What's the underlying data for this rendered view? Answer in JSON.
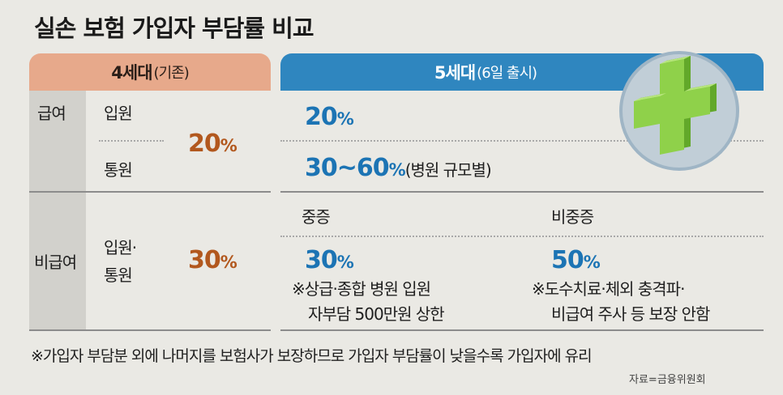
{
  "title": "실손 보험 가입자 부담률 비교",
  "header": {
    "gen4_main": "4세대",
    "gen4_sub": "(기존)",
    "gen5_main": "5세대",
    "gen5_sub": "(6일 출시)"
  },
  "rows": {
    "benefit": {
      "category": "급여",
      "inpatient": "입원",
      "outpatient": "통원",
      "gen4_value": "20",
      "gen5_inpatient_value": "20",
      "gen5_outpatient_value": "30~60",
      "gen5_outpatient_note": "(병원 규모별)"
    },
    "non_benefit": {
      "category": "비급여",
      "type_line1": "입원·",
      "type_line2": "통원",
      "gen4_value": "30",
      "severe_label": "중증",
      "nonsevere_label": "비중증",
      "severe_value": "30",
      "nonsevere_value": "50",
      "severe_note_line1": "※상급·종합 병원 입원",
      "severe_note_line2": "자부담 500만원 상한",
      "nonsevere_note_line1": "※도수치료·체외 충격파·",
      "nonsevere_note_line2": "비급여 주사 등 보장 안함"
    }
  },
  "percent_unit": "%",
  "footnote": "※가입자 부담분 외에 나머지를 보험사가 보장하므로 가입자 부담률이 낮을수록 가입자에 유리",
  "source": "자료=금융위원회",
  "colors": {
    "gen4_header": "#e7a98b",
    "gen5_header": "#2f86bf",
    "gen4_value": "#b2581e",
    "gen5_value": "#1c74b4",
    "cross": "#7cc43a"
  },
  "icons": {
    "illustration": "medical-cross-icon"
  }
}
